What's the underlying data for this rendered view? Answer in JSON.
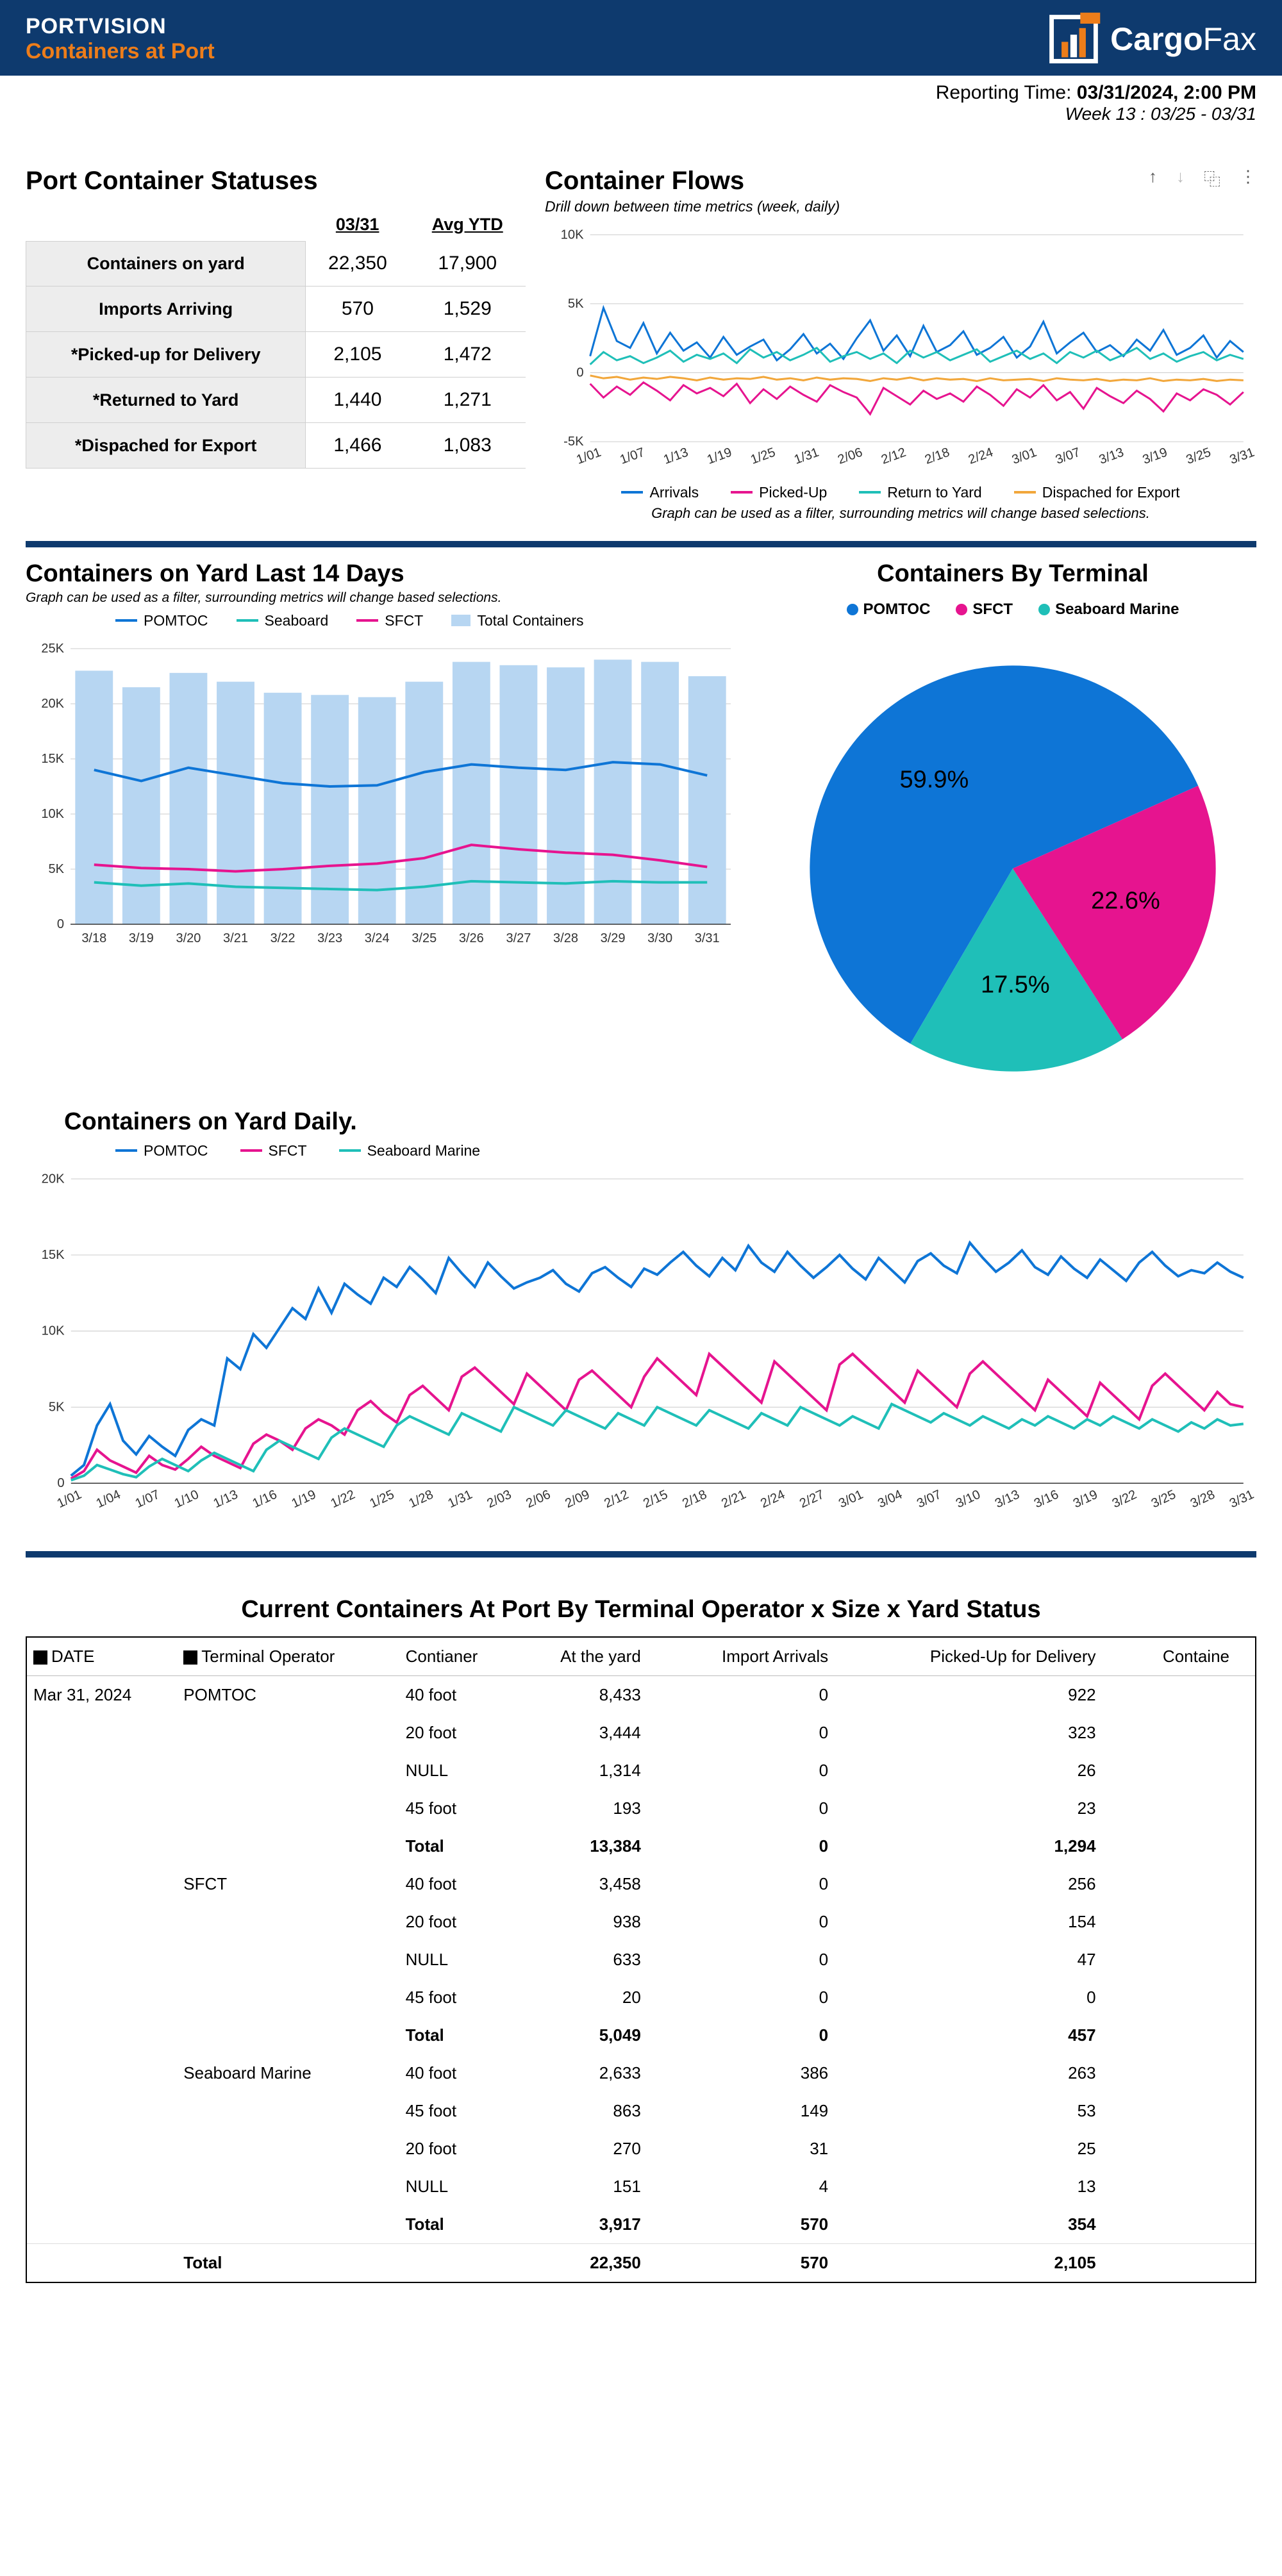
{
  "header": {
    "title": "PORTVISION",
    "subtitle": "Containers at Port",
    "logo_text_bold": "Cargo",
    "logo_text_light": "Fax"
  },
  "report_time": {
    "label": "Reporting Time:",
    "value": "03/31/2024, 2:00 PM",
    "week": "Week 13 : 03/25 - 03/31"
  },
  "colors": {
    "header_bg": "#0e3a6e",
    "accent": "#ed7d1a",
    "pomtoc": "#0e75d6",
    "sfct": "#e6148f",
    "seaboard": "#1fbfb8",
    "export": "#f2a73b",
    "total_bar": "#b7d6f2"
  },
  "status_table": {
    "title": "Port Container Statuses",
    "col1": "03/31",
    "col2": "Avg YTD",
    "rows": [
      {
        "label": "Containers on yard",
        "v1": "22,350",
        "v2": "17,900"
      },
      {
        "label": "Imports Arriving",
        "v1": "570",
        "v2": "1,529"
      },
      {
        "label": "*Picked-up for Delivery",
        "v1": "2,105",
        "v2": "1,472"
      },
      {
        "label": "*Returned to Yard",
        "v1": "1,440",
        "v2": "1,271"
      },
      {
        "label": "*Dispached for Export",
        "v1": "1,466",
        "v2": "1,083"
      }
    ]
  },
  "flows_chart": {
    "title": "Container Flows",
    "subtitle": "Drill down between time metrics (week, daily)",
    "note": "Graph can be used as a filter, surrounding metrics will change based selections.",
    "y_ticks": [
      -5000,
      0,
      5000,
      10000
    ],
    "y_labels": [
      "-5K",
      "0",
      "5K",
      "10K"
    ],
    "x_labels": [
      "1/01",
      "1/07",
      "1/13",
      "1/19",
      "1/25",
      "1/31",
      "2/06",
      "2/12",
      "2/18",
      "2/24",
      "3/01",
      "3/07",
      "3/13",
      "3/19",
      "3/25",
      "3/31"
    ],
    "series": {
      "arrivals": {
        "label": "Arrivals",
        "color": "#0e75d6",
        "data": [
          1200,
          4700,
          2300,
          1800,
          3600,
          1400,
          2900,
          1600,
          2200,
          1100,
          2600,
          1300,
          1900,
          2400,
          900,
          1700,
          2800,
          1400,
          2100,
          1000,
          2500,
          3800,
          1600,
          2700,
          1200,
          3400,
          1500,
          2000,
          3000,
          1300,
          1800,
          2600,
          1100,
          1900,
          3700,
          1400,
          2200,
          2900,
          1500,
          2000,
          1200,
          2400,
          1600,
          3100,
          1300,
          1800,
          2700,
          1100,
          2300,
          1500
        ]
      },
      "picked": {
        "label": "Picked-Up",
        "color": "#e6148f",
        "data": [
          -800,
          -1800,
          -1000,
          -1600,
          -700,
          -1300,
          -2000,
          -900,
          -1500,
          -1100,
          -1700,
          -800,
          -2200,
          -1200,
          -1900,
          -1000,
          -1600,
          -2100,
          -900,
          -1400,
          -1800,
          -3000,
          -1100,
          -1700,
          -2300,
          -1300,
          -1900,
          -1500,
          -2100,
          -1000,
          -1600,
          -2400,
          -1200,
          -1800,
          -900,
          -2000,
          -1400,
          -2600,
          -1100,
          -1700,
          -2200,
          -1300,
          -1900,
          -2800,
          -1500,
          -2000,
          -1200,
          -1600,
          -2300,
          -1400
        ]
      },
      "return": {
        "label": "Return to Yard",
        "color": "#1fbfb8",
        "data": [
          600,
          1500,
          900,
          1200,
          700,
          1100,
          1600,
          800,
          1300,
          1000,
          1400,
          700,
          1700,
          1100,
          1500,
          900,
          1300,
          1800,
          800,
          1200,
          1500,
          1000,
          1400,
          700,
          1600,
          1100,
          1500,
          900,
          1300,
          1700,
          800,
          1200,
          1600,
          1000,
          1400,
          700,
          1500,
          1100,
          1600,
          900,
          1300,
          1800,
          1000,
          1400,
          800,
          1200,
          1500,
          900,
          1300,
          1000
        ]
      },
      "export": {
        "label": "Dispached for Export",
        "color": "#f2a73b",
        "data": [
          -200,
          -400,
          -300,
          -500,
          -350,
          -450,
          -300,
          -400,
          -550,
          -350,
          -500,
          -400,
          -450,
          -300,
          -500,
          -400,
          -550,
          -350,
          -500,
          -400,
          -450,
          -600,
          -400,
          -500,
          -350,
          -550,
          -400,
          -500,
          -450,
          -600,
          -400,
          -550,
          -500,
          -450,
          -600,
          -400,
          -500,
          -550,
          -450,
          -600,
          -500,
          -550,
          -400,
          -600,
          -500,
          -550,
          -450,
          -600,
          -500,
          -550
        ]
      }
    }
  },
  "yard14_chart": {
    "title": "Containers on Yard Last 14 Days",
    "subtitle": "Graph can be used as a filter, surrounding metrics will change based selections.",
    "y_ticks": [
      0,
      5000,
      10000,
      15000,
      20000,
      25000
    ],
    "y_labels": [
      "0",
      "5K",
      "10K",
      "15K",
      "20K",
      "25K"
    ],
    "x_labels": [
      "3/18",
      "3/19",
      "3/20",
      "3/21",
      "3/22",
      "3/23",
      "3/24",
      "3/25",
      "3/26",
      "3/27",
      "3/28",
      "3/29",
      "3/30",
      "3/31"
    ],
    "total_bars": [
      23000,
      21500,
      22800,
      22000,
      21000,
      20800,
      20600,
      22000,
      23800,
      23500,
      23300,
      24000,
      23800,
      22500
    ],
    "series": {
      "pomtoc": {
        "label": "POMTOC",
        "color": "#0e75d6",
        "data": [
          14000,
          13000,
          14200,
          13500,
          12800,
          12500,
          12600,
          13800,
          14500,
          14200,
          14000,
          14700,
          14500,
          13500
        ]
      },
      "seaboard": {
        "label": "Seaboard",
        "color": "#1fbfb8",
        "data": [
          3800,
          3500,
          3700,
          3400,
          3300,
          3200,
          3100,
          3400,
          3900,
          3800,
          3700,
          3900,
          3800,
          3800
        ]
      },
      "sfct": {
        "label": "SFCT",
        "color": "#e6148f",
        "data": [
          5400,
          5100,
          5000,
          4800,
          5000,
          5300,
          5500,
          6000,
          7200,
          6800,
          6500,
          6300,
          5800,
          5200
        ]
      },
      "total": {
        "label": "Total Containers",
        "color": "#b7d6f2"
      }
    }
  },
  "pie_chart": {
    "title": "Containers By Terminal",
    "slices": [
      {
        "label": "POMTOC",
        "pct": 59.9,
        "color": "#0e75d6"
      },
      {
        "label": "SFCT",
        "pct": 22.6,
        "color": "#e6148f"
      },
      {
        "label": "Seaboard Marine",
        "pct": 17.5,
        "color": "#1fbfb8"
      }
    ]
  },
  "daily_chart": {
    "title": "Containers on Yard Daily.",
    "y_ticks": [
      0,
      5000,
      10000,
      15000,
      20000
    ],
    "y_labels": [
      "0",
      "5K",
      "10K",
      "15K",
      "20K"
    ],
    "x_labels": [
      "1/01",
      "1/04",
      "1/07",
      "1/10",
      "1/13",
      "1/16",
      "1/19",
      "1/22",
      "1/25",
      "1/28",
      "1/31",
      "2/03",
      "2/06",
      "2/09",
      "2/12",
      "2/15",
      "2/18",
      "2/21",
      "2/24",
      "2/27",
      "3/01",
      "3/04",
      "3/07",
      "3/10",
      "3/13",
      "3/16",
      "3/19",
      "3/22",
      "3/25",
      "3/28",
      "3/31"
    ],
    "series": {
      "pomtoc": {
        "label": "POMTOC",
        "color": "#0e75d6",
        "data": [
          500,
          1200,
          3800,
          5200,
          2800,
          1900,
          3100,
          2400,
          1800,
          3500,
          4200,
          3800,
          8200,
          7500,
          9800,
          8900,
          10200,
          11500,
          10800,
          12800,
          11200,
          13100,
          12400,
          11800,
          13500,
          12900,
          14200,
          13400,
          12500,
          14800,
          13800,
          12900,
          14500,
          13600,
          12800,
          13200,
          13500,
          14000,
          13100,
          12600,
          13800,
          14200,
          13500,
          12900,
          14100,
          13700,
          14500,
          15200,
          14300,
          13600,
          14800,
          14000,
          15600,
          14500,
          13900,
          15200,
          14300,
          13500,
          14200,
          15000,
          14100,
          13400,
          14800,
          14000,
          13200,
          14600,
          15100,
          14300,
          13800,
          15800,
          14800,
          13900,
          14500,
          15300,
          14200,
          13700,
          14900,
          14100,
          13500,
          14700,
          14000,
          13300,
          14500,
          15200,
          14300,
          13600,
          14000,
          13800,
          14500,
          13900,
          13500
        ]
      },
      "sfct": {
        "label": "SFCT",
        "color": "#e6148f",
        "data": [
          300,
          800,
          2200,
          1500,
          1100,
          700,
          1800,
          1200,
          900,
          1600,
          2400,
          1800,
          1400,
          1000,
          2600,
          3200,
          2800,
          2200,
          3600,
          4200,
          3800,
          3200,
          4800,
          5400,
          4600,
          4000,
          5800,
          6400,
          5600,
          4800,
          7000,
          7600,
          6800,
          6000,
          5200,
          7200,
          6400,
          5600,
          4800,
          6800,
          7400,
          6600,
          5800,
          5000,
          7000,
          8200,
          7400,
          6600,
          5800,
          8500,
          7700,
          6900,
          6100,
          5300,
          8000,
          7200,
          6400,
          5600,
          4800,
          7800,
          8500,
          7700,
          6900,
          6100,
          5300,
          7400,
          6600,
          5800,
          5000,
          7200,
          8000,
          7200,
          6400,
          5600,
          4800,
          6800,
          6000,
          5200,
          4400,
          6600,
          5800,
          5000,
          4200,
          6400,
          7200,
          6400,
          5600,
          4800,
          6000,
          5200,
          5000
        ]
      },
      "seaboard": {
        "label": "Seaboard Marine",
        "color": "#1fbfb8",
        "data": [
          200,
          500,
          1200,
          900,
          600,
          400,
          1100,
          1600,
          1200,
          800,
          1500,
          2000,
          1600,
          1200,
          800,
          2200,
          2800,
          2400,
          2000,
          1600,
          3000,
          3600,
          3200,
          2800,
          2400,
          3800,
          4400,
          4000,
          3600,
          3200,
          4600,
          4200,
          3800,
          3400,
          5000,
          4600,
          4200,
          3800,
          4800,
          4400,
          4000,
          3600,
          4600,
          4200,
          3800,
          5000,
          4600,
          4200,
          3800,
          4800,
          4400,
          4000,
          3600,
          4600,
          4200,
          3800,
          5000,
          4600,
          4200,
          3800,
          4400,
          4000,
          3600,
          5200,
          4800,
          4400,
          4000,
          4600,
          4200,
          3800,
          4400,
          4000,
          3600,
          4200,
          3800,
          4400,
          4000,
          3600,
          4200,
          3800,
          4400,
          4000,
          3600,
          4200,
          3800,
          3400,
          4000,
          3600,
          4200,
          3800,
          3900
        ]
      }
    }
  },
  "big_table": {
    "title": "Current Containers At Port By Terminal Operator x Size x Yard Status",
    "columns": [
      "DATE",
      "Terminal Operator",
      "Contianer",
      "At the yard",
      "Import Arrivals",
      "Picked-Up for Delivery",
      "Containe"
    ],
    "date": "Mar 31, 2024",
    "groups": [
      {
        "operator": "POMTOC",
        "rows": [
          {
            "size": "40 foot",
            "yard": "8,433",
            "imp": "0",
            "pick": "922"
          },
          {
            "size": "20 foot",
            "yard": "3,444",
            "imp": "0",
            "pick": "323"
          },
          {
            "size": "NULL",
            "yard": "1,314",
            "imp": "0",
            "pick": "26"
          },
          {
            "size": "45 foot",
            "yard": "193",
            "imp": "0",
            "pick": "23"
          }
        ],
        "total": {
          "yard": "13,384",
          "imp": "0",
          "pick": "1,294"
        }
      },
      {
        "operator": "SFCT",
        "rows": [
          {
            "size": "40 foot",
            "yard": "3,458",
            "imp": "0",
            "pick": "256"
          },
          {
            "size": "20 foot",
            "yard": "938",
            "imp": "0",
            "pick": "154"
          },
          {
            "size": "NULL",
            "yard": "633",
            "imp": "0",
            "pick": "47"
          },
          {
            "size": "45 foot",
            "yard": "20",
            "imp": "0",
            "pick": "0"
          }
        ],
        "total": {
          "yard": "5,049",
          "imp": "0",
          "pick": "457"
        }
      },
      {
        "operator": "Seaboard Marine",
        "rows": [
          {
            "size": "40 foot",
            "yard": "2,633",
            "imp": "386",
            "pick": "263"
          },
          {
            "size": "45 foot",
            "yard": "863",
            "imp": "149",
            "pick": "53"
          },
          {
            "size": "20 foot",
            "yard": "270",
            "imp": "31",
            "pick": "25"
          },
          {
            "size": "NULL",
            "yard": "151",
            "imp": "4",
            "pick": "13"
          }
        ],
        "total": {
          "yard": "3,917",
          "imp": "570",
          "pick": "354"
        }
      }
    ],
    "grand_total": {
      "label": "Total",
      "yard": "22,350",
      "imp": "570",
      "pick": "2,105"
    }
  }
}
